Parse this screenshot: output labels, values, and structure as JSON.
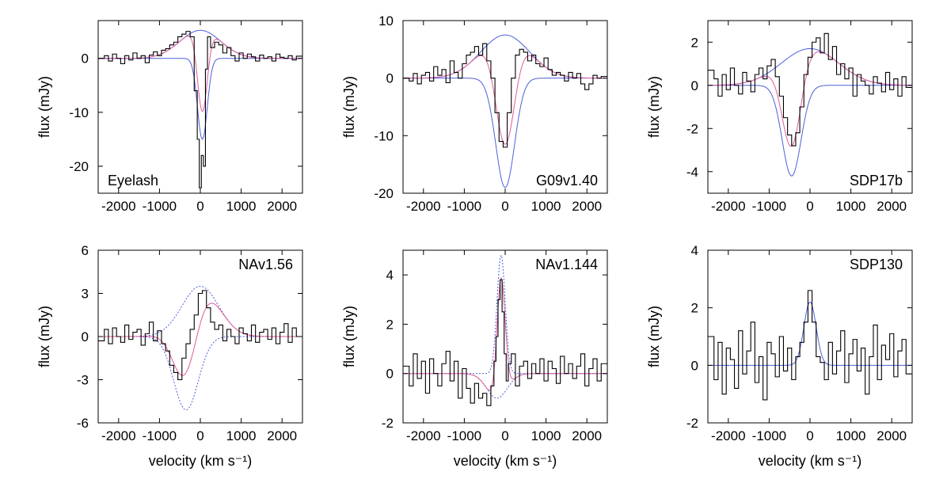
{
  "figure": {
    "title": ""
  },
  "chart_data": [
    {
      "type": "line",
      "panel_label": "Eyelash",
      "label_position": "bottom-left",
      "xlim": [
        -2500,
        2500
      ],
      "ylim": [
        -25,
        7
      ],
      "xticks": [
        -2000,
        -1000,
        0,
        1000,
        2000
      ],
      "xtick_labels": [
        "-2000",
        "-1000",
        "0",
        "1000",
        "2000"
      ],
      "yticks": [
        0,
        -10,
        -20
      ],
      "ytick_labels": [
        "0",
        "-10",
        "-20"
      ],
      "xlabel": "",
      "ylabel": "flux (mJy)",
      "components": [
        {
          "name": "emission",
          "amp": 5.2,
          "center": 0,
          "sigma": 500,
          "style": "solid"
        },
        {
          "name": "absorption",
          "amp": -15,
          "center": 50,
          "sigma": 120,
          "style": "solid"
        }
      ],
      "data": {
        "x": [
          -2400,
          -2300,
          -2200,
          -2100,
          -2000,
          -1900,
          -1800,
          -1700,
          -1600,
          -1500,
          -1400,
          -1300,
          -1200,
          -1100,
          -1000,
          -900,
          -800,
          -700,
          -600,
          -500,
          -400,
          -300,
          -200,
          -100,
          -50,
          0,
          50,
          100,
          150,
          200,
          300,
          400,
          500,
          600,
          700,
          800,
          900,
          1000,
          1100,
          1200,
          1300,
          1400,
          1500,
          1600,
          1700,
          1800,
          1900,
          2000,
          2100,
          2200,
          2300,
          2400
        ],
        "y": [
          0,
          0.5,
          -0.5,
          0.8,
          0,
          -1,
          0.5,
          -0.3,
          1,
          0,
          0.5,
          -0.8,
          0.6,
          1.2,
          0.5,
          1.5,
          1.8,
          2.5,
          3,
          4,
          4.5,
          5,
          4,
          -6,
          -15,
          -24,
          -18,
          -20,
          -2,
          4,
          2,
          3,
          2.5,
          1,
          2,
          0.5,
          -0.5,
          1,
          0,
          0.8,
          0.3,
          -0.5,
          0.6,
          0,
          0.3,
          -0.5,
          0.8,
          0.2,
          0,
          0.5,
          -0.3,
          0.4
        ]
      }
    },
    {
      "type": "line",
      "panel_label": "G09v1.40",
      "label_position": "bottom-right",
      "xlim": [
        -2500,
        2500
      ],
      "ylim": [
        -20,
        10
      ],
      "xticks": [
        -2000,
        -1000,
        0,
        1000,
        2000
      ],
      "xtick_labels": [
        "-2000",
        "-1000",
        "0",
        "1000",
        "2000"
      ],
      "yticks": [
        10,
        0,
        -10,
        -20
      ],
      "ytick_labels": [
        "10",
        "0",
        "-10",
        "-20"
      ],
      "xlabel": "",
      "ylabel": "flux (mJy)",
      "components": [
        {
          "name": "emission",
          "amp": 7.5,
          "center": 0,
          "sigma": 600,
          "style": "solid"
        },
        {
          "name": "absorption",
          "amp": -19,
          "center": 0,
          "sigma": 230,
          "style": "solid"
        }
      ],
      "data": {
        "x": [
          -2400,
          -2300,
          -2200,
          -2100,
          -2000,
          -1900,
          -1800,
          -1700,
          -1600,
          -1500,
          -1400,
          -1300,
          -1200,
          -1100,
          -1000,
          -900,
          -800,
          -700,
          -600,
          -500,
          -400,
          -300,
          -200,
          -100,
          0,
          100,
          200,
          300,
          400,
          500,
          600,
          700,
          800,
          900,
          1000,
          1100,
          1200,
          1300,
          1400,
          1500,
          1600,
          1700,
          1800,
          1900,
          2000,
          2100,
          2200,
          2300,
          2400
        ],
        "y": [
          0,
          -0.5,
          0.8,
          -1,
          0.5,
          1,
          -0.5,
          2,
          0.5,
          1.5,
          -0.8,
          3,
          1,
          0,
          2.5,
          4,
          4.5,
          5.5,
          4,
          6,
          3,
          0,
          -6,
          -11,
          -12,
          -6,
          0,
          4,
          5,
          4.5,
          3,
          4,
          2.5,
          2,
          3.5,
          1.5,
          0.5,
          1,
          0.5,
          -0.5,
          1,
          0,
          0.8,
          -1,
          -2,
          -1,
          0.5,
          0,
          0.3
        ]
      }
    },
    {
      "type": "line",
      "panel_label": "SDP17b",
      "label_position": "bottom-right",
      "xlim": [
        -2500,
        2500
      ],
      "ylim": [
        -5,
        3
      ],
      "xticks": [
        -2000,
        -1000,
        0,
        1000,
        2000
      ],
      "xtick_labels": [
        "-2000",
        "-1000",
        "0",
        "1000",
        "2000"
      ],
      "yticks": [
        2,
        0,
        -2,
        -4
      ],
      "ytick_labels": [
        "2",
        "0",
        "-2",
        "-4"
      ],
      "xlabel": "",
      "ylabel": "flux (mJy)",
      "components": [
        {
          "name": "emission",
          "amp": 1.7,
          "center": 0,
          "sigma": 700,
          "style": "solid"
        },
        {
          "name": "absorption",
          "amp": -4.2,
          "center": -450,
          "sigma": 230,
          "style": "solid"
        }
      ],
      "data": {
        "x": [
          -2400,
          -2300,
          -2200,
          -2100,
          -2000,
          -1900,
          -1800,
          -1700,
          -1600,
          -1500,
          -1400,
          -1300,
          -1200,
          -1100,
          -1000,
          -900,
          -800,
          -700,
          -600,
          -500,
          -400,
          -300,
          -200,
          -100,
          0,
          100,
          200,
          300,
          400,
          500,
          600,
          700,
          800,
          900,
          1000,
          1100,
          1200,
          1300,
          1400,
          1500,
          1600,
          1700,
          1800,
          1900,
          2000,
          2100,
          2200,
          2300,
          2400
        ],
        "y": [
          0.7,
          0.3,
          -0.5,
          0.5,
          -0.2,
          0.8,
          0,
          -0.4,
          0.6,
          0.2,
          -0.3,
          0.5,
          0.8,
          0.3,
          0.9,
          1.2,
          0.4,
          -0.5,
          -1.5,
          -2.3,
          -2.8,
          -2.2,
          -1,
          0.5,
          1.3,
          2,
          2.2,
          1.5,
          2.4,
          1.2,
          1.8,
          0.5,
          1,
          0.3,
          0.8,
          -0.5,
          0.5,
          0.2,
          0,
          -0.4,
          0.4,
          0.1,
          -0.3,
          0.6,
          -0.2,
          0.3,
          -0.5,
          0.4,
          -0.1
        ]
      }
    },
    {
      "type": "line",
      "panel_label": "NAv1.56",
      "label_position": "top-right",
      "xlim": [
        -2500,
        2500
      ],
      "ylim": [
        -6,
        6
      ],
      "xticks": [
        -2000,
        -1000,
        0,
        1000,
        2000
      ],
      "xtick_labels": [
        "-2000",
        "-1000",
        "0",
        "1000",
        "2000"
      ],
      "yticks": [
        6,
        3,
        0,
        -3,
        -6
      ],
      "ytick_labels": [
        "6",
        "3",
        "0",
        "-3",
        "-6"
      ],
      "xlabel": "velocity (km s⁻¹)",
      "ylabel": "flux (mJy)",
      "components": [
        {
          "name": "emission",
          "amp": 3.5,
          "center": 0,
          "sigma": 450,
          "style": "dotted"
        },
        {
          "name": "absorption",
          "amp": -5.1,
          "center": -350,
          "sigma": 300,
          "style": "dotted"
        }
      ],
      "data": {
        "x": [
          -2400,
          -2300,
          -2200,
          -2100,
          -2000,
          -1900,
          -1800,
          -1700,
          -1600,
          -1500,
          -1400,
          -1300,
          -1200,
          -1100,
          -1000,
          -900,
          -800,
          -700,
          -600,
          -500,
          -400,
          -300,
          -200,
          -100,
          0,
          100,
          200,
          300,
          400,
          500,
          600,
          700,
          800,
          900,
          1000,
          1100,
          1200,
          1300,
          1400,
          1500,
          1600,
          1700,
          1800,
          1900,
          2000,
          2100,
          2200,
          2300,
          2400
        ],
        "y": [
          -0.3,
          0.5,
          -0.5,
          0.6,
          0,
          -0.4,
          0.8,
          -0.2,
          0.3,
          0.5,
          -0.6,
          0.2,
          1,
          -0.3,
          0.4,
          -0.5,
          -1,
          -2,
          -2.5,
          -3,
          -1.5,
          -0.5,
          0.5,
          1.5,
          3,
          3.2,
          2,
          1,
          0.5,
          0.8,
          -0.3,
          0.5,
          0,
          -0.5,
          0.6,
          0.2,
          -0.3,
          0.8,
          -0.4,
          0.3,
          0.5,
          -0.2,
          0.6,
          -0.5,
          0.3,
          0.9,
          -0.4,
          0.6,
          0
        ]
      }
    },
    {
      "type": "line",
      "panel_label": "NAv1.144",
      "label_position": "top-right",
      "xlim": [
        -2500,
        2500
      ],
      "ylim": [
        -2,
        5
      ],
      "xticks": [
        -2000,
        -1000,
        0,
        1000,
        2000
      ],
      "xtick_labels": [
        "-2000",
        "-1000",
        "0",
        "1000",
        "2000"
      ],
      "yticks": [
        4,
        2,
        0,
        -2
      ],
      "ytick_labels": [
        "4",
        "2",
        "0",
        "-2"
      ],
      "xlabel": "velocity (km s⁻¹)",
      "ylabel": "flux (mJy)",
      "components": [
        {
          "name": "emission",
          "amp": 4.8,
          "center": -100,
          "sigma": 100,
          "style": "dotted"
        },
        {
          "name": "absorption",
          "amp": -1.0,
          "center": -200,
          "sigma": 250,
          "style": "dotted"
        }
      ],
      "data": {
        "x": [
          -2400,
          -2300,
          -2200,
          -2100,
          -2000,
          -1900,
          -1800,
          -1700,
          -1600,
          -1500,
          -1400,
          -1300,
          -1200,
          -1100,
          -1000,
          -900,
          -800,
          -700,
          -600,
          -500,
          -400,
          -300,
          -250,
          -200,
          -150,
          -100,
          -50,
          0,
          50,
          100,
          200,
          300,
          400,
          500,
          600,
          700,
          800,
          900,
          1000,
          1100,
          1200,
          1300,
          1400,
          1500,
          1600,
          1700,
          1800,
          1900,
          2000,
          2100,
          2200,
          2300,
          2400
        ],
        "y": [
          0.3,
          -0.5,
          0.8,
          -0.2,
          0.5,
          -0.8,
          0.6,
          0,
          -0.5,
          0.4,
          0.9,
          -0.3,
          0.5,
          -1,
          0.2,
          -0.6,
          -1.2,
          -0.4,
          -1,
          -0.8,
          -1.3,
          -0.5,
          0.5,
          1.5,
          3,
          3.8,
          2.5,
          0.8,
          -0.3,
          0.4,
          0.8,
          -0.5,
          0.3,
          0.5,
          -0.2,
          0.4,
          0,
          0.6,
          -0.3,
          0.5,
          0.2,
          -0.4,
          0.7,
          0,
          0.4,
          -0.2,
          0.3,
          0.8,
          -0.5,
          0.2,
          0.6,
          -0.3,
          0.4
        ]
      }
    },
    {
      "type": "line",
      "panel_label": "SDP130",
      "label_position": "top-right",
      "xlim": [
        -2500,
        2500
      ],
      "ylim": [
        -2,
        4
      ],
      "xticks": [
        -2000,
        -1000,
        0,
        1000,
        2000
      ],
      "xtick_labels": [
        "-2000",
        "-1000",
        "0",
        "1000",
        "2000"
      ],
      "yticks": [
        4,
        2,
        0,
        -2
      ],
      "ytick_labels": [
        "4",
        "2",
        "0",
        "-2"
      ],
      "xlabel": "velocity (km s⁻¹)",
      "ylabel": "flux (mJy)",
      "components": [
        {
          "name": "emission",
          "amp": 2.2,
          "center": 0,
          "sigma": 150,
          "style": "solid"
        }
      ],
      "data": {
        "x": [
          -2400,
          -2300,
          -2200,
          -2100,
          -2000,
          -1900,
          -1800,
          -1700,
          -1600,
          -1500,
          -1400,
          -1300,
          -1200,
          -1100,
          -1000,
          -900,
          -800,
          -700,
          -600,
          -500,
          -400,
          -300,
          -200,
          -100,
          0,
          100,
          200,
          300,
          400,
          500,
          600,
          700,
          800,
          900,
          1000,
          1100,
          1200,
          1300,
          1400,
          1500,
          1600,
          1700,
          1800,
          1900,
          2000,
          2100,
          2200,
          2300,
          2400
        ],
        "y": [
          1,
          -0.5,
          0.8,
          -1,
          0.6,
          0.2,
          -0.8,
          1.2,
          -0.3,
          0.5,
          1.5,
          -0.6,
          0.3,
          -1.2,
          0.8,
          0.4,
          -0.4,
          1,
          -0.2,
          0.6,
          -0.5,
          0.3,
          0.8,
          1.5,
          2.6,
          1.5,
          0.3,
          0.1,
          -0.5,
          0.8,
          -0.3,
          0.5,
          1.2,
          -0.6,
          0.4,
          0.9,
          -0.2,
          0.6,
          -1,
          0.3,
          1.4,
          -0.5,
          0.7,
          0.2,
          1.1,
          -0.4,
          0.5,
          0.9,
          -0.3
        ]
      }
    }
  ],
  "colors": {
    "data_line": "#000000",
    "component_fit": "#4d5fdc",
    "combined_fit": "#e05a9a",
    "frame": "#000000"
  }
}
